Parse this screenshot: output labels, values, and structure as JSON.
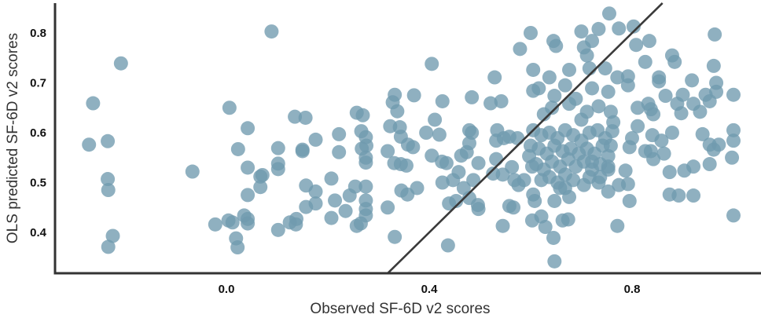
{
  "chart_data": {
    "type": "scatter",
    "title": "",
    "xlabel": "Observed SF-6D v2 scores",
    "ylabel": "OLS predicted SF-6D v2 scores",
    "xlim": [
      -0.34,
      1.05
    ],
    "ylim": [
      0.317,
      0.86
    ],
    "xticks": [
      {
        "value": 0.0,
        "label": "0.0"
      },
      {
        "value": 0.4,
        "label": "0.4"
      },
      {
        "value": 0.8,
        "label": "0.8"
      }
    ],
    "yticks": [
      {
        "value": 0.4,
        "label": "0.4"
      },
      {
        "value": 0.5,
        "label": "0.5"
      },
      {
        "value": 0.6,
        "label": "0.6"
      },
      {
        "value": 0.7,
        "label": "0.7"
      },
      {
        "value": 0.8,
        "label": "0.8"
      }
    ],
    "grid": false,
    "reference_line": {
      "type": "identity",
      "slope": 1,
      "intercept": 0,
      "color": "#3a3a3a"
    },
    "point_color": "#6f9aae",
    "points": [
      [
        -0.271,
        0.576
      ],
      [
        -0.263,
        0.659
      ],
      [
        -0.208,
        0.739
      ],
      [
        -0.234,
        0.583
      ],
      [
        -0.234,
        0.507
      ],
      [
        -0.233,
        0.485
      ],
      [
        -0.224,
        0.393
      ],
      [
        -0.233,
        0.371
      ],
      [
        -0.067,
        0.522
      ],
      [
        0.089,
        0.803
      ],
      [
        0.006,
        0.65
      ],
      [
        0.042,
        0.609
      ],
      [
        0.023,
        0.567
      ],
      [
        0.042,
        0.53
      ],
      [
        0.042,
        0.475
      ],
      [
        0.067,
        0.512
      ],
      [
        0.071,
        0.515
      ],
      [
        0.067,
        0.491
      ],
      [
        -0.022,
        0.416
      ],
      [
        0.004,
        0.424
      ],
      [
        0.012,
        0.42
      ],
      [
        0.019,
        0.388
      ],
      [
        0.022,
        0.37
      ],
      [
        0.035,
        0.434
      ],
      [
        0.042,
        0.427
      ],
      [
        0.042,
        0.418
      ],
      [
        0.102,
        0.405
      ],
      [
        0.102,
        0.569
      ],
      [
        0.102,
        0.538
      ],
      [
        0.102,
        0.527
      ],
      [
        0.135,
        0.632
      ],
      [
        0.156,
        0.63
      ],
      [
        0.15,
        0.566
      ],
      [
        0.15,
        0.563
      ],
      [
        0.176,
        0.586
      ],
      [
        0.125,
        0.42
      ],
      [
        0.138,
        0.427
      ],
      [
        0.137,
        0.416
      ],
      [
        0.157,
        0.494
      ],
      [
        0.176,
        0.482
      ],
      [
        0.176,
        0.458
      ],
      [
        0.157,
        0.451
      ],
      [
        0.207,
        0.508
      ],
      [
        0.214,
        0.464
      ],
      [
        0.207,
        0.429
      ],
      [
        0.235,
        0.443
      ],
      [
        0.222,
        0.597
      ],
      [
        0.222,
        0.561
      ],
      [
        0.243,
        0.474
      ],
      [
        0.254,
        0.492
      ],
      [
        0.275,
        0.492
      ],
      [
        0.275,
        0.464
      ],
      [
        0.275,
        0.447
      ],
      [
        0.275,
        0.434
      ],
      [
        0.265,
        0.418
      ],
      [
        0.257,
        0.413
      ],
      [
        0.257,
        0.64
      ],
      [
        0.269,
        0.635
      ],
      [
        0.266,
        0.603
      ],
      [
        0.275,
        0.591
      ],
      [
        0.267,
        0.568
      ],
      [
        0.276,
        0.574
      ],
      [
        0.275,
        0.55
      ],
      [
        0.275,
        0.54
      ],
      [
        0.318,
        0.563
      ],
      [
        0.332,
        0.676
      ],
      [
        0.328,
        0.661
      ],
      [
        0.337,
        0.643
      ],
      [
        0.323,
        0.613
      ],
      [
        0.342,
        0.611
      ],
      [
        0.344,
        0.592
      ],
      [
        0.358,
        0.576
      ],
      [
        0.368,
        0.571
      ],
      [
        0.331,
        0.539
      ],
      [
        0.344,
        0.537
      ],
      [
        0.355,
        0.534
      ],
      [
        0.345,
        0.484
      ],
      [
        0.357,
        0.476
      ],
      [
        0.318,
        0.45
      ],
      [
        0.332,
        0.391
      ],
      [
        0.376,
        0.489
      ],
      [
        0.37,
        0.675
      ],
      [
        0.405,
        0.738
      ],
      [
        0.426,
        0.663
      ],
      [
        0.411,
        0.626
      ],
      [
        0.42,
        0.596
      ],
      [
        0.394,
        0.6
      ],
      [
        0.405,
        0.554
      ],
      [
        0.425,
        0.542
      ],
      [
        0.434,
        0.539
      ],
      [
        0.426,
        0.5
      ],
      [
        0.447,
        0.505
      ],
      [
        0.458,
        0.521
      ],
      [
        0.439,
        0.458
      ],
      [
        0.453,
        0.463
      ],
      [
        0.437,
        0.374
      ],
      [
        0.484,
        0.671
      ],
      [
        0.463,
        0.554
      ],
      [
        0.479,
        0.605
      ],
      [
        0.484,
        0.6
      ],
      [
        0.479,
        0.579
      ],
      [
        0.474,
        0.561
      ],
      [
        0.487,
        0.505
      ],
      [
        0.468,
        0.489
      ],
      [
        0.479,
        0.469
      ],
      [
        0.496,
        0.455
      ],
      [
        0.497,
        0.447
      ],
      [
        0.497,
        0.539
      ],
      [
        0.521,
        0.659
      ],
      [
        0.542,
        0.663
      ],
      [
        0.529,
        0.711
      ],
      [
        0.534,
        0.605
      ],
      [
        0.532,
        0.584
      ],
      [
        0.532,
        0.547
      ],
      [
        0.526,
        0.518
      ],
      [
        0.545,
        0.516
      ],
      [
        0.545,
        0.413
      ],
      [
        0.547,
        0.589
      ],
      [
        0.558,
        0.592
      ],
      [
        0.574,
        0.589
      ],
      [
        0.563,
        0.531
      ],
      [
        0.558,
        0.453
      ],
      [
        0.566,
        0.45
      ],
      [
        0.568,
        0.505
      ],
      [
        0.576,
        0.495
      ],
      [
        0.587,
        0.505
      ],
      [
        0.579,
        0.768
      ],
      [
        0.6,
        0.8
      ],
      [
        0.605,
        0.726
      ],
      [
        0.605,
        0.684
      ],
      [
        0.616,
        0.689
      ],
      [
        0.6,
        0.574
      ],
      [
        0.597,
        0.553
      ],
      [
        0.603,
        0.532
      ],
      [
        0.605,
        0.476
      ],
      [
        0.608,
        0.463
      ],
      [
        0.603,
        0.424
      ],
      [
        0.621,
        0.432
      ],
      [
        0.629,
        0.411
      ],
      [
        0.626,
        0.637
      ],
      [
        0.637,
        0.711
      ],
      [
        0.645,
        0.784
      ],
      [
        0.65,
        0.774
      ],
      [
        0.647,
        0.674
      ],
      [
        0.642,
        0.65
      ],
      [
        0.645,
        0.389
      ],
      [
        0.647,
        0.342
      ],
      [
        0.647,
        0.463
      ],
      [
        0.663,
        0.424
      ],
      [
        0.674,
        0.426
      ],
      [
        0.676,
        0.726
      ],
      [
        0.668,
        0.695
      ],
      [
        0.676,
        0.658
      ],
      [
        0.668,
        0.489
      ],
      [
        0.676,
        0.471
      ],
      [
        0.7,
        0.803
      ],
      [
        0.705,
        0.771
      ],
      [
        0.711,
        0.755
      ],
      [
        0.716,
        0.729
      ],
      [
        0.721,
        0.784
      ],
      [
        0.734,
        0.808
      ],
      [
        0.755,
        0.839
      ],
      [
        0.774,
        0.809
      ],
      [
        0.803,
        0.813
      ],
      [
        0.808,
        0.776
      ],
      [
        0.834,
        0.784
      ],
      [
        0.747,
        0.729
      ],
      [
        0.753,
        0.682
      ],
      [
        0.758,
        0.642
      ],
      [
        0.763,
        0.621
      ],
      [
        0.771,
        0.711
      ],
      [
        0.792,
        0.713
      ],
      [
        0.792,
        0.695
      ],
      [
        0.826,
        0.742
      ],
      [
        0.811,
        0.65
      ],
      [
        0.832,
        0.658
      ],
      [
        0.837,
        0.647
      ],
      [
        0.842,
        0.637
      ],
      [
        0.853,
        0.711
      ],
      [
        0.853,
        0.703
      ],
      [
        0.866,
        0.674
      ],
      [
        0.879,
        0.755
      ],
      [
        0.884,
        0.742
      ],
      [
        0.889,
        0.658
      ],
      [
        0.9,
        0.676
      ],
      [
        0.897,
        0.639
      ],
      [
        0.918,
        0.705
      ],
      [
        0.921,
        0.658
      ],
      [
        0.934,
        0.642
      ],
      [
        0.945,
        0.676
      ],
      [
        0.953,
        0.663
      ],
      [
        0.963,
        0.797
      ],
      [
        0.961,
        0.734
      ],
      [
        0.966,
        0.7
      ],
      [
        0.966,
        0.682
      ],
      [
        1.0,
        0.676
      ],
      [
        1.0,
        0.605
      ],
      [
        1.0,
        0.584
      ],
      [
        0.997,
        0.55
      ],
      [
        1.0,
        0.434
      ],
      [
        0.939,
        0.597
      ],
      [
        0.953,
        0.576
      ],
      [
        0.971,
        0.576
      ],
      [
        0.961,
        0.566
      ],
      [
        0.953,
        0.537
      ],
      [
        0.921,
        0.532
      ],
      [
        0.903,
        0.524
      ],
      [
        0.874,
        0.521
      ],
      [
        0.879,
        0.6
      ],
      [
        0.874,
        0.476
      ],
      [
        0.892,
        0.474
      ],
      [
        0.921,
        0.474
      ],
      [
        0.858,
        0.584
      ],
      [
        0.863,
        0.558
      ],
      [
        0.84,
        0.595
      ],
      [
        0.837,
        0.563
      ],
      [
        0.842,
        0.547
      ],
      [
        0.826,
        0.563
      ],
      [
        0.811,
        0.613
      ],
      [
        0.8,
        0.589
      ],
      [
        0.795,
        0.571
      ],
      [
        0.787,
        0.524
      ],
      [
        0.792,
        0.497
      ],
      [
        0.795,
        0.463
      ],
      [
        0.774,
        0.495
      ],
      [
        0.771,
        0.413
      ],
      [
        0.753,
        0.482
      ],
      [
        0.753,
        0.532
      ],
      [
        0.758,
        0.574
      ],
      [
        0.761,
        0.603
      ],
      [
        0.734,
        0.5
      ],
      [
        0.721,
        0.542
      ],
      [
        0.705,
        0.495
      ],
      [
        0.734,
        0.653
      ],
      [
        0.721,
        0.689
      ],
      [
        0.711,
        0.642
      ],
      [
        0.689,
        0.668
      ],
      [
        0.7,
        0.626
      ],
      [
        0.605,
        0.605
      ],
      [
        0.621,
        0.595
      ],
      [
        0.637,
        0.6
      ],
      [
        0.653,
        0.589
      ],
      [
        0.668,
        0.605
      ],
      [
        0.684,
        0.595
      ],
      [
        0.7,
        0.584
      ],
      [
        0.716,
        0.6
      ],
      [
        0.732,
        0.605
      ],
      [
        0.747,
        0.589
      ],
      [
        0.616,
        0.568
      ],
      [
        0.632,
        0.558
      ],
      [
        0.647,
        0.574
      ],
      [
        0.663,
        0.563
      ],
      [
        0.679,
        0.568
      ],
      [
        0.695,
        0.558
      ],
      [
        0.711,
        0.568
      ],
      [
        0.726,
        0.558
      ],
      [
        0.742,
        0.574
      ],
      [
        0.753,
        0.553
      ],
      [
        0.611,
        0.537
      ],
      [
        0.626,
        0.526
      ],
      [
        0.642,
        0.542
      ],
      [
        0.658,
        0.532
      ],
      [
        0.674,
        0.547
      ],
      [
        0.689,
        0.532
      ],
      [
        0.705,
        0.542
      ],
      [
        0.721,
        0.526
      ],
      [
        0.737,
        0.537
      ],
      [
        0.753,
        0.526
      ],
      [
        0.637,
        0.511
      ],
      [
        0.653,
        0.5
      ],
      [
        0.668,
        0.516
      ],
      [
        0.684,
        0.505
      ],
      [
        0.658,
        0.489
      ],
      [
        0.621,
        0.505
      ],
      [
        0.716,
        0.511
      ],
      [
        0.737,
        0.511
      ]
    ]
  }
}
